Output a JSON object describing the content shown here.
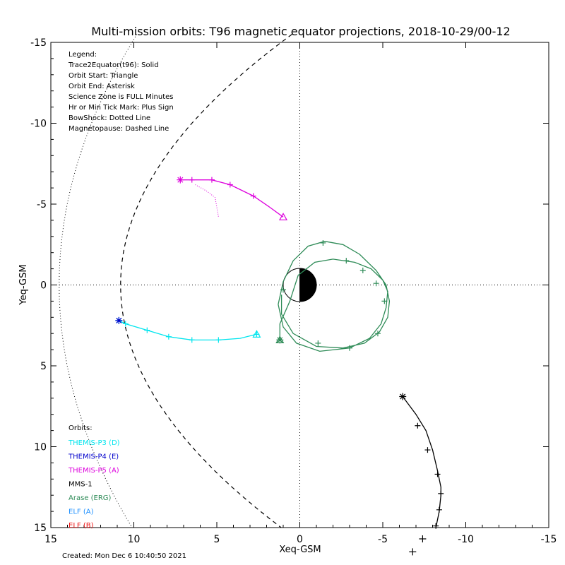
{
  "chart_data": {
    "type": "scatter",
    "title": "Multi-mission orbits: T96 magnetic equator projections, 2018-10-29/00-12",
    "xlabel": "Xeq-GSM",
    "ylabel": "Yeq-GSM",
    "xlim": [
      15,
      -15
    ],
    "ylim": [
      -15,
      15
    ],
    "xticks": [
      "15",
      "10",
      "5",
      "0",
      "-5",
      "-10",
      "-15"
    ],
    "yticks": [
      "-15",
      "-10",
      "-5",
      "0",
      "5",
      "10",
      "15"
    ],
    "grid": false,
    "reference_lines": "dotted x=0 and y=0",
    "created": "Created: Mon Dec  6 10:40:50 2021",
    "legend_lines": [
      "Legend:",
      "Trace2Equator(t96): Solid",
      "Orbit Start: Triangle",
      "Orbit End: Asterisk",
      "Science Zone is FULL Minutes",
      "Hr or Min Tick Mark: Plus Sign",
      "BowShock: Dotted Line",
      "Magnetopause: Dashed Line"
    ],
    "orbits_header": "Orbits:",
    "orbit_legend": [
      {
        "label": "THEMIS-P3 (D)",
        "color": "#00e5ee"
      },
      {
        "label": "THEMIS-P4 (E)",
        "color": "#0000cc"
      },
      {
        "label": "THEMIS-P5 (A)",
        "color": "#dd00dd"
      },
      {
        "label": "MMS-1",
        "color": "#000000"
      },
      {
        "label": "Arase (ERG)",
        "color": "#2e8b57"
      },
      {
        "label": "ELF (A)",
        "color": "#1e90ff"
      },
      {
        "label": "ELF (B)",
        "color": "#ee1111"
      }
    ],
    "series": [
      {
        "name": "THEMIS-P3 (D)",
        "color": "#00e5ee",
        "x": [
          10.9,
          10.5,
          9.2,
          7.9,
          6.5,
          4.9,
          3.6,
          2.6
        ],
        "y": [
          2.2,
          2.4,
          2.8,
          3.2,
          3.4,
          3.4,
          3.3,
          3.05
        ],
        "start": [
          2.6,
          3.05
        ],
        "end": [
          10.9,
          2.2
        ],
        "ticks": [
          [
            10.5,
            2.4
          ],
          [
            9.2,
            2.8
          ],
          [
            7.9,
            3.2
          ],
          [
            6.5,
            3.4
          ],
          [
            4.9,
            3.4
          ],
          [
            2.6,
            3.05
          ]
        ]
      },
      {
        "name": "THEMIS-P4 (E)",
        "color": "#0000cc",
        "x": [
          10.9
        ],
        "y": [
          2.2
        ],
        "end": [
          10.9,
          2.2
        ]
      },
      {
        "name": "THEMIS-P5 (A)",
        "color": "#dd00dd",
        "x": [
          1.0,
          1.8,
          2.8,
          4.2,
          5.3,
          6.5,
          7.2
        ],
        "y": [
          -4.2,
          -4.8,
          -5.5,
          -6.2,
          -6.5,
          -6.5,
          -6.5
        ],
        "start": [
          1.0,
          -4.2
        ],
        "end": [
          7.2,
          -6.5
        ],
        "ticks": [
          [
            2.8,
            -5.5
          ],
          [
            4.2,
            -6.2
          ],
          [
            5.3,
            -6.5
          ],
          [
            6.5,
            -6.5
          ]
        ],
        "trace": {
          "x": [
            6.3,
            5.6,
            5.1,
            4.9
          ],
          "y": [
            -6.2,
            -5.8,
            -5.4,
            -4.2
          ]
        }
      },
      {
        "name": "MMS-1",
        "color": "#000000",
        "x": [
          -6.2,
          -7.0,
          -7.6,
          -8.0,
          -8.3,
          -8.5,
          -8.5,
          -8.4,
          -8.2
        ],
        "y": [
          6.9,
          8.0,
          9.0,
          10.2,
          11.5,
          12.5,
          13.0,
          14.0,
          15.0
        ],
        "end": [
          -6.2,
          6.9
        ],
        "ticks": [
          [
            -7.1,
            8.7
          ],
          [
            -7.7,
            10.2
          ],
          [
            -8.3,
            11.7
          ],
          [
            -8.5,
            12.9
          ],
          [
            -8.4,
            13.9
          ],
          [
            -8.2,
            14.9
          ]
        ],
        "extra_marks": [
          [
            -7.4,
            15.7
          ],
          [
            -6.8,
            16.5
          ]
        ]
      },
      {
        "name": "Arase (ERG)",
        "color": "#2e8b57",
        "x": [
          1.2,
          1.2,
          0.6,
          0.1,
          -0.9,
          -2.0,
          -3.3,
          -4.3,
          -5.0,
          -5.3,
          -5.2,
          -4.9,
          -4.2,
          -3.0,
          -1.2,
          0.2,
          1.0,
          1.3,
          1.0,
          0.4,
          -0.5,
          -1.5,
          -2.6,
          -3.6,
          -4.6,
          -5.2,
          -5.4,
          -5.3,
          -4.8,
          -3.9,
          -2.6,
          -1.0,
          0.4,
          1.1,
          1.1
        ],
        "y": [
          3.4,
          2.4,
          1.0,
          -0.6,
          -1.4,
          -1.6,
          -1.4,
          -1.0,
          -0.3,
          0.4,
          1.4,
          2.4,
          3.3,
          3.9,
          4.1,
          3.6,
          2.6,
          1.2,
          -0.2,
          -1.5,
          -2.4,
          -2.7,
          -2.5,
          -1.9,
          -0.9,
          0.0,
          1.0,
          2.0,
          2.9,
          3.6,
          3.9,
          3.8,
          3.0,
          1.8,
          0.6
        ],
        "start": [
          1.2,
          3.4
        ],
        "end": [
          1.2,
          3.4
        ],
        "ticks": [
          [
            -1.4,
            -2.6
          ],
          [
            -2.8,
            -1.5
          ],
          [
            -3.8,
            -0.9
          ],
          [
            -4.6,
            -0.1
          ],
          [
            -5.1,
            1.0
          ],
          [
            -4.7,
            3.0
          ],
          [
            -3.0,
            3.9
          ],
          [
            -1.1,
            3.6
          ],
          [
            1.0,
            0.3
          ]
        ]
      },
      {
        "name": "ELF (A)",
        "color": "#1e90ff",
        "x": [],
        "y": []
      },
      {
        "name": "ELF (B)",
        "color": "#ee1111",
        "x": [],
        "y": []
      }
    ],
    "earth": {
      "radius": 1.0,
      "night_side": "black",
      "day_side": "white"
    }
  }
}
